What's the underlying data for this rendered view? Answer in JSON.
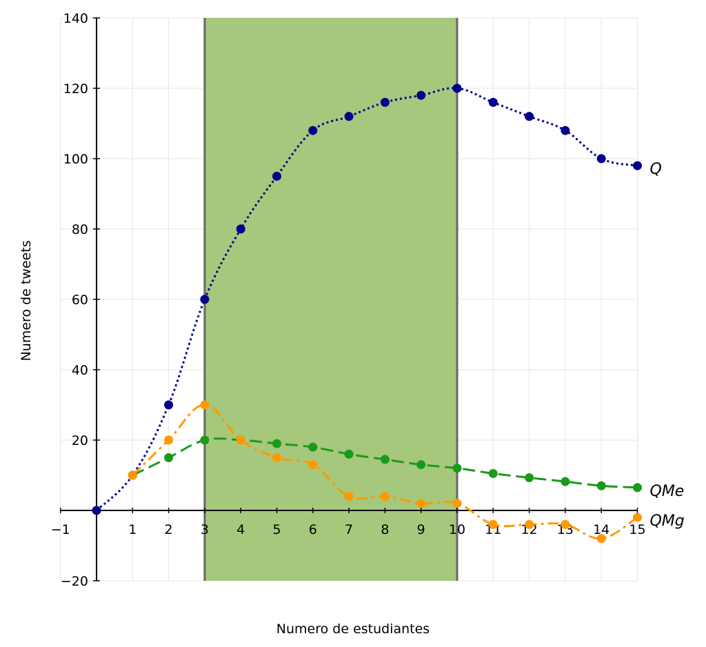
{
  "chart_data": {
    "type": "line",
    "xlabel": "Numero de estudiantes",
    "ylabel": "Numero de tweets",
    "xlim": [
      -1,
      15
    ],
    "ylim": [
      -20,
      140
    ],
    "x_ticks": [
      -1,
      1,
      2,
      3,
      4,
      5,
      6,
      7,
      8,
      9,
      10,
      11,
      12,
      13,
      14,
      15
    ],
    "y_ticks": [
      140,
      120,
      100,
      80,
      60,
      40,
      20,
      -20
    ],
    "grid": true,
    "shaded_region": {
      "x_start": 3,
      "x_end": 10,
      "color": "#a6c87c",
      "border_color": "#666666"
    },
    "series": [
      {
        "name": "Q",
        "color": "#00008b",
        "line_style": "dotted",
        "x": [
          0,
          1,
          2,
          3,
          4,
          5,
          6,
          7,
          8,
          9,
          10,
          11,
          12,
          13,
          14,
          15
        ],
        "y": [
          0,
          10,
          30,
          60,
          80,
          95,
          108,
          112,
          116,
          118,
          120,
          116,
          112,
          108,
          100,
          98
        ]
      },
      {
        "name": "QMe",
        "color": "#1a9a1a",
        "line_style": "dashed",
        "x": [
          1,
          2,
          3,
          4,
          5,
          6,
          7,
          8,
          9,
          10,
          11,
          12,
          13,
          14,
          15
        ],
        "y": [
          10,
          15,
          20,
          20,
          19,
          18,
          16,
          14.5,
          13,
          12,
          10.5,
          9.3,
          8.2,
          7,
          6.5
        ]
      },
      {
        "name": "QMg",
        "color": "#ff9900",
        "line_style": "dash-dot",
        "x": [
          1,
          2,
          3,
          4,
          5,
          6,
          7,
          8,
          9,
          10,
          11,
          12,
          13,
          14,
          15
        ],
        "y": [
          10,
          20,
          30,
          20,
          15,
          13,
          4,
          4,
          2,
          2,
          -4,
          -4,
          -4,
          -8,
          -2
        ]
      }
    ]
  }
}
